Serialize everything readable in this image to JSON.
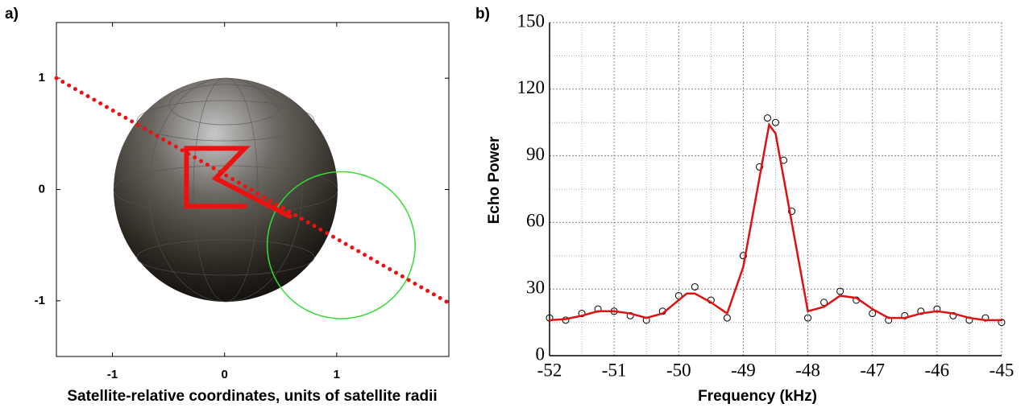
{
  "chart_data": [
    {
      "type": "line",
      "panel_label": "a)",
      "xlabel": "Satellite-relative coordinates, units of satellite radii",
      "xlim": [
        -1.5,
        2
      ],
      "ylim": [
        -1.5,
        1.5
      ],
      "xticks": [
        -1,
        0,
        1
      ],
      "yticks": [
        -1,
        0,
        1
      ],
      "grid": false,
      "circle": {
        "color": "#33dd33",
        "center": [
          1.04,
          -0.5
        ],
        "radius": 0.66
      },
      "series": [
        {
          "color": "#ee1111",
          "style": "dotted",
          "x": [
            -1.5,
            2
          ],
          "values": [
            1,
            -1.02
          ]
        },
        {
          "color": "#ee1111",
          "style": "solid",
          "x": [
            0.18,
            -0.34,
            -0.34,
            0.18,
            -0.08,
            0.58
          ],
          "values": [
            -0.15,
            -0.15,
            0.37,
            0.37,
            0.1,
            -0.24
          ]
        }
      ]
    },
    {
      "type": "line",
      "panel_label": "b)",
      "xlabel": "Frequency (kHz)",
      "ylabel": "Echo Power",
      "xlim": [
        -52,
        -45
      ],
      "ylim": [
        0,
        150
      ],
      "xticks": [
        -52,
        -51,
        -50,
        -49,
        -48,
        -47,
        -46,
        -45
      ],
      "yticks": [
        0,
        30,
        60,
        90,
        120,
        150
      ],
      "grid": true,
      "series": [
        {
          "color": "#000000",
          "style": "markers",
          "x": [
            -52,
            -51.75,
            -51.5,
            -51.25,
            -51,
            -50.75,
            -50.5,
            -50.25,
            -50,
            -49.75,
            -49.5,
            -49.25,
            -49,
            -48.75,
            -48.625,
            -48.5,
            -48.375,
            -48.25,
            -48,
            -47.75,
            -47.5,
            -47.25,
            -47,
            -46.75,
            -46.5,
            -46.25,
            -46,
            -45.75,
            -45.5,
            -45.25,
            -45
          ],
          "values": [
            17,
            16,
            19,
            21,
            20,
            18,
            16,
            20,
            27,
            31,
            25,
            17,
            45,
            85,
            107,
            105,
            88,
            65,
            17,
            24,
            29,
            25,
            19,
            16,
            18,
            20,
            21,
            18,
            16,
            17,
            15
          ]
        },
        {
          "color": "#dd1111",
          "style": "solid",
          "x": [
            -52,
            -51.75,
            -51.5,
            -51.25,
            -51,
            -50.75,
            -50.5,
            -50.25,
            -50,
            -49.875,
            -49.75,
            -49.5,
            -49.25,
            -49,
            -48.75,
            -48.6,
            -48.5,
            -48.25,
            -48,
            -47.75,
            -47.5,
            -47.25,
            -47,
            -46.75,
            -46.5,
            -46.25,
            -46,
            -45.75,
            -45.5,
            -45.25,
            -45
          ],
          "values": [
            16,
            16.5,
            18,
            20,
            20,
            19,
            17,
            19,
            25,
            28,
            28,
            24,
            19,
            40,
            80,
            104,
            100,
            60,
            20,
            22,
            27,
            26,
            21,
            17,
            17,
            19,
            20,
            19,
            17,
            16,
            16
          ]
        }
      ]
    }
  ]
}
